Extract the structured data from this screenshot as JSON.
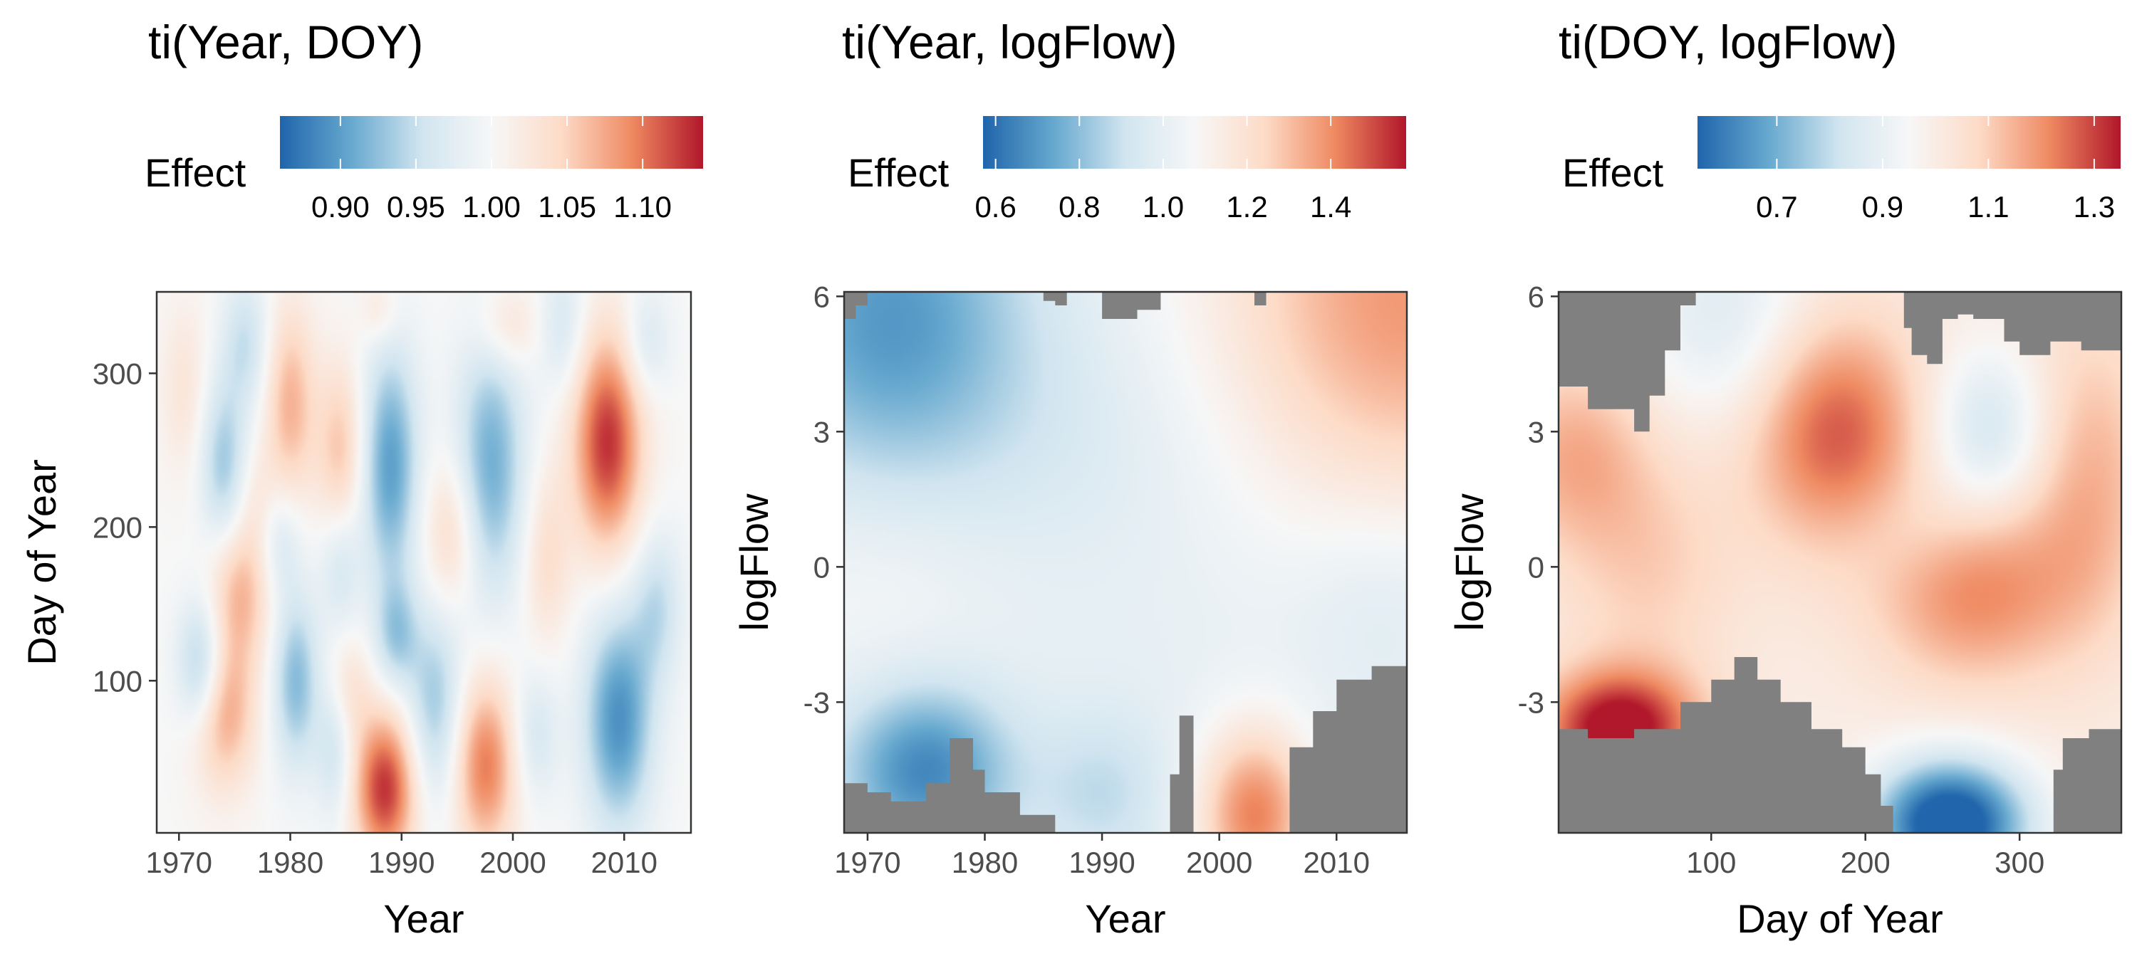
{
  "chart_data": [
    {
      "type": "heatmap",
      "title": "ti(Year, DOY)",
      "xlabel": "Year",
      "ylabel": "Day of Year",
      "legend_title": "Effect",
      "legend_position": "top",
      "xlim": [
        1968,
        2016
      ],
      "ylim": [
        1,
        353
      ],
      "x_ticks": [
        1970,
        1980,
        1990,
        2000,
        2010
      ],
      "y_ticks": [
        100,
        200,
        300
      ],
      "color_range": [
        0.86,
        1.14
      ],
      "legend_ticks": [
        0.9,
        0.95,
        1.0,
        1.05,
        1.1
      ],
      "legend_tick_labels": [
        "0.90",
        "0.95",
        "1.00",
        "1.05",
        "1.10"
      ],
      "colormap": [
        "#2166ac",
        "#67a9cf",
        "#d1e5f0",
        "#f7f7f7",
        "#fddbc7",
        "#ef8a62",
        "#b2182b"
      ],
      "no_data_color": "#808080",
      "grid": false,
      "surface": {
        "peaks": [
          {
            "x": 1988.5,
            "y": 30,
            "sx": 2.0,
            "sy": 35,
            "amp": 0.13
          },
          {
            "x": 1997.5,
            "y": 45,
            "sx": 2.0,
            "sy": 40,
            "amp": 0.1
          },
          {
            "x": 1974,
            "y": 80,
            "sx": 2.0,
            "sy": 35,
            "amp": 0.08
          },
          {
            "x": 1975.5,
            "y": 160,
            "sx": 2.0,
            "sy": 35,
            "amp": 0.07
          },
          {
            "x": 1980,
            "y": 280,
            "sx": 1.6,
            "sy": 45,
            "amp": 0.07
          },
          {
            "x": 1984.5,
            "y": 250,
            "sx": 1.5,
            "sy": 40,
            "amp": 0.06
          },
          {
            "x": 1985,
            "y": 95,
            "sx": 1.5,
            "sy": 25,
            "amp": 0.04
          },
          {
            "x": 1994.5,
            "y": 195,
            "sx": 1.8,
            "sy": 35,
            "amp": 0.05
          },
          {
            "x": 1999.5,
            "y": 330,
            "sx": 2.0,
            "sy": 20,
            "amp": 0.04
          },
          {
            "x": 2003,
            "y": 180,
            "sx": 1.5,
            "sy": 40,
            "amp": 0.04
          },
          {
            "x": 2008.5,
            "y": 255,
            "sx": 2.2,
            "sy": 50,
            "amp": 0.13
          },
          {
            "x": 1970.5,
            "y": 290,
            "sx": 1.5,
            "sy": 40,
            "amp": 0.03
          },
          {
            "x": 1988,
            "y": 340,
            "sx": 1.2,
            "sy": 15,
            "amp": 0.03
          },
          {
            "x": 1977,
            "y": 220,
            "sx": 1.2,
            "sy": 25,
            "amp": 0.02
          },
          {
            "x": 1972,
            "y": 110,
            "sx": 1.5,
            "sy": 30,
            "amp": -0.08
          },
          {
            "x": 1974,
            "y": 240,
            "sx": 1.5,
            "sy": 40,
            "amp": -0.07
          },
          {
            "x": 1976,
            "y": 320,
            "sx": 1.5,
            "sy": 30,
            "amp": -0.05
          },
          {
            "x": 1980.5,
            "y": 100,
            "sx": 1.5,
            "sy": 40,
            "amp": -0.08
          },
          {
            "x": 1979,
            "y": 190,
            "sx": 1.4,
            "sy": 25,
            "amp": -0.04
          },
          {
            "x": 1984,
            "y": 60,
            "sx": 1.2,
            "sy": 35,
            "amp": -0.05
          },
          {
            "x": 1984.5,
            "y": 175,
            "sx": 1.3,
            "sy": 30,
            "amp": -0.04
          },
          {
            "x": 1989,
            "y": 240,
            "sx": 1.8,
            "sy": 55,
            "amp": -0.1
          },
          {
            "x": 1989.5,
            "y": 130,
            "sx": 1.4,
            "sy": 25,
            "amp": -0.06
          },
          {
            "x": 1993,
            "y": 85,
            "sx": 1.8,
            "sy": 45,
            "amp": -0.07
          },
          {
            "x": 1998,
            "y": 240,
            "sx": 2.2,
            "sy": 60,
            "amp": -0.09
          },
          {
            "x": 2002,
            "y": 65,
            "sx": 1.5,
            "sy": 30,
            "amp": -0.04
          },
          {
            "x": 2004.5,
            "y": 330,
            "sx": 1.5,
            "sy": 30,
            "amp": -0.04
          },
          {
            "x": 2009.5,
            "y": 75,
            "sx": 2.2,
            "sy": 50,
            "amp": -0.11
          },
          {
            "x": 2013,
            "y": 150,
            "sx": 1.6,
            "sy": 35,
            "amp": -0.05
          },
          {
            "x": 2012,
            "y": 320,
            "sx": 1.5,
            "sy": 25,
            "amp": -0.04
          }
        ]
      },
      "missing_regions": []
    },
    {
      "type": "heatmap",
      "title": "ti(Year, logFlow)",
      "xlabel": "Year",
      "ylabel": "logFlow",
      "legend_title": "Effect",
      "legend_position": "top",
      "xlim": [
        1968,
        2016
      ],
      "ylim": [
        -5.9,
        6.1
      ],
      "x_ticks": [
        1970,
        1980,
        1990,
        2000,
        2010
      ],
      "y_ticks": [
        -3,
        0,
        3,
        6
      ],
      "color_range": [
        0.57,
        1.58
      ],
      "legend_ticks": [
        0.6,
        0.8,
        1.0,
        1.2,
        1.4
      ],
      "legend_tick_labels": [
        "0.6",
        "0.8",
        "1.0",
        "1.2",
        "1.4"
      ],
      "colormap": [
        "#2166ac",
        "#67a9cf",
        "#d1e5f0",
        "#f7f7f7",
        "#fddbc7",
        "#ef8a62",
        "#b2182b"
      ],
      "no_data_color": "#808080",
      "grid": false,
      "surface": {
        "peaks": [
          {
            "x": 1972,
            "y": 5.5,
            "sx": 8,
            "sy": 2.5,
            "amp": -0.3
          },
          {
            "x": 1975,
            "y": -4.5,
            "sx": 5,
            "sy": 1.3,
            "amp": -0.35
          },
          {
            "x": 1990,
            "y": -5,
            "sx": 4,
            "sy": 1.2,
            "amp": -0.12
          },
          {
            "x": 2016,
            "y": 6,
            "sx": 12,
            "sy": 3.5,
            "amp": 0.38
          },
          {
            "x": 2003,
            "y": -5.5,
            "sx": 3.5,
            "sy": 1.4,
            "amp": 0.42
          },
          {
            "x": 1970,
            "y": -0.5,
            "sx": 8,
            "sy": 1.8,
            "amp": 0.06
          },
          {
            "x": 2014,
            "y": -0.6,
            "sx": 5,
            "sy": 1.5,
            "amp": -0.06
          },
          {
            "x": 1988,
            "y": 3,
            "sx": 10,
            "sy": 2,
            "amp": -0.05
          }
        ]
      },
      "missing_regions": [
        [
          [
            1968,
            6.1
          ],
          [
            1968,
            5.5
          ],
          [
            1969,
            5.5
          ],
          [
            1969,
            5.8
          ],
          [
            1970,
            5.8
          ],
          [
            1970,
            6.1
          ]
        ],
        [
          [
            1985,
            6.1
          ],
          [
            1987,
            6.1
          ],
          [
            1987,
            5.8
          ],
          [
            1986,
            5.8
          ],
          [
            1986,
            5.9
          ],
          [
            1985,
            5.9
          ]
        ],
        [
          [
            1990,
            6.1
          ],
          [
            1990,
            5.5
          ],
          [
            1993,
            5.5
          ],
          [
            1993,
            5.7
          ],
          [
            1995,
            5.7
          ],
          [
            1995,
            6.1
          ]
        ],
        [
          [
            2004,
            6.1
          ],
          [
            2004,
            5.8
          ],
          [
            2003,
            5.8
          ],
          [
            2003,
            6.1
          ]
        ],
        [
          [
            1968,
            -5.9
          ],
          [
            1968,
            -4.8
          ],
          [
            1970,
            -4.8
          ],
          [
            1970,
            -5.0
          ],
          [
            1972,
            -5.0
          ],
          [
            1972,
            -5.2
          ],
          [
            1975,
            -5.2
          ],
          [
            1975,
            -4.8
          ],
          [
            1977,
            -4.8
          ],
          [
            1977,
            -3.8
          ],
          [
            1979,
            -3.8
          ],
          [
            1979,
            -4.5
          ],
          [
            1980,
            -4.5
          ],
          [
            1980,
            -5.0
          ],
          [
            1983,
            -5.0
          ],
          [
            1983,
            -5.5
          ],
          [
            1986,
            -5.5
          ],
          [
            1986,
            -5.9
          ]
        ],
        [
          [
            1995.8,
            -5.9
          ],
          [
            1995.8,
            -4.6
          ],
          [
            1996.6,
            -4.6
          ],
          [
            1996.6,
            -3.3
          ],
          [
            1997.8,
            -3.3
          ],
          [
            1997.8,
            -5.9
          ]
        ],
        [
          [
            2006,
            -5.9
          ],
          [
            2006,
            -4.0
          ],
          [
            2008,
            -4.0
          ],
          [
            2008,
            -3.2
          ],
          [
            2010,
            -3.2
          ],
          [
            2010,
            -2.5
          ],
          [
            2013,
            -2.5
          ],
          [
            2013,
            -2.2
          ],
          [
            2016,
            -2.2
          ],
          [
            2016,
            -5.9
          ]
        ]
      ]
    },
    {
      "type": "heatmap",
      "title": "ti(DOY, logFlow)",
      "xlabel": "Day of Year",
      "ylabel": "logFlow",
      "legend_title": "Effect",
      "legend_position": "top",
      "xlim": [
        1,
        366
      ],
      "ylim": [
        -5.9,
        6.1
      ],
      "x_ticks": [
        100,
        200,
        300
      ],
      "y_ticks": [
        -3,
        0,
        3,
        6
      ],
      "color_range": [
        0.55,
        1.35
      ],
      "legend_ticks": [
        0.7,
        0.9,
        1.1,
        1.3
      ],
      "legend_tick_labels": [
        "0.7",
        "0.9",
        "1.1",
        "1.3"
      ],
      "colormap": [
        "#2166ac",
        "#67a9cf",
        "#d1e5f0",
        "#f7f7f7",
        "#fddbc7",
        "#ef8a62",
        "#b2182b"
      ],
      "no_data_color": "#808080",
      "grid": false,
      "surface": {
        "peaks": [
          {
            "x": 40,
            "y": -3.6,
            "sx": 35,
            "sy": 0.9,
            "amp": 0.4
          },
          {
            "x": 180,
            "y": 3.0,
            "sx": 40,
            "sy": 1.8,
            "amp": 0.28
          },
          {
            "x": 270,
            "y": -0.5,
            "sx": 45,
            "sy": 1.5,
            "amp": 0.22
          },
          {
            "x": 345,
            "y": 2.0,
            "sx": 30,
            "sy": 2.5,
            "amp": 0.15
          },
          {
            "x": 10,
            "y": 2.5,
            "sx": 35,
            "sy": 1.5,
            "amp": 0.15
          },
          {
            "x": 60,
            "y": 0,
            "sx": 40,
            "sy": 2,
            "amp": 0.1
          },
          {
            "x": 255,
            "y": -5.7,
            "sx": 35,
            "sy": 1.0,
            "amp": -0.55
          },
          {
            "x": 280,
            "y": 3.0,
            "sx": 28,
            "sy": 1.3,
            "amp": -0.18
          },
          {
            "x": 110,
            "y": 5.5,
            "sx": 40,
            "sy": 1.8,
            "amp": -0.14
          },
          {
            "x": 230,
            "y": 0.8,
            "sx": 35,
            "sy": 1.0,
            "amp": -0.06
          }
        ]
      },
      "missing_regions": [
        [
          [
            1,
            6.1
          ],
          [
            1,
            4.0
          ],
          [
            20,
            4.0
          ],
          [
            20,
            3.5
          ],
          [
            50,
            3.5
          ],
          [
            50,
            3.0
          ],
          [
            60,
            3.0
          ],
          [
            60,
            3.8
          ],
          [
            70,
            3.8
          ],
          [
            70,
            4.8
          ],
          [
            80,
            4.8
          ],
          [
            80,
            5.8
          ],
          [
            90,
            5.8
          ],
          [
            90,
            6.1
          ]
        ],
        [
          [
            225,
            6.1
          ],
          [
            225,
            5.3
          ],
          [
            230,
            5.3
          ],
          [
            230,
            4.7
          ],
          [
            240,
            4.7
          ],
          [
            240,
            4.5
          ],
          [
            250,
            4.5
          ],
          [
            250,
            5.5
          ],
          [
            260,
            5.5
          ],
          [
            260,
            5.6
          ],
          [
            270,
            5.6
          ],
          [
            270,
            5.5
          ],
          [
            290,
            5.5
          ],
          [
            290,
            5.0
          ],
          [
            300,
            5.0
          ],
          [
            300,
            4.7
          ],
          [
            320,
            4.7
          ],
          [
            320,
            5.0
          ],
          [
            340,
            5.0
          ],
          [
            340,
            4.8
          ],
          [
            366,
            4.8
          ],
          [
            366,
            6.1
          ]
        ],
        [
          [
            1,
            -5.9
          ],
          [
            1,
            -3.6
          ],
          [
            20,
            -3.6
          ],
          [
            20,
            -3.8
          ],
          [
            50,
            -3.8
          ],
          [
            50,
            -3.6
          ],
          [
            80,
            -3.6
          ],
          [
            80,
            -3.0
          ],
          [
            100,
            -3.0
          ],
          [
            100,
            -2.5
          ],
          [
            115,
            -2.5
          ],
          [
            115,
            -2.0
          ],
          [
            130,
            -2.0
          ],
          [
            130,
            -2.5
          ],
          [
            145,
            -2.5
          ],
          [
            145,
            -3.0
          ],
          [
            165,
            -3.0
          ],
          [
            165,
            -3.6
          ],
          [
            185,
            -3.6
          ],
          [
            185,
            -4.0
          ],
          [
            200,
            -4.0
          ],
          [
            200,
            -4.6
          ],
          [
            210,
            -4.6
          ],
          [
            210,
            -5.3
          ],
          [
            218,
            -5.3
          ],
          [
            218,
            -5.9
          ]
        ],
        [
          [
            322,
            -5.9
          ],
          [
            322,
            -4.5
          ],
          [
            328,
            -4.5
          ],
          [
            328,
            -3.8
          ],
          [
            345,
            -3.8
          ],
          [
            345,
            -3.6
          ],
          [
            366,
            -3.6
          ],
          [
            366,
            -5.9
          ]
        ]
      ]
    }
  ]
}
